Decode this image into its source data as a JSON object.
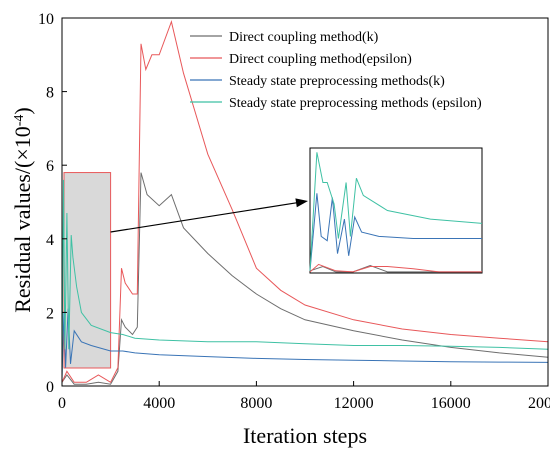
{
  "chart_data": {
    "type": "line",
    "xlabel": "Iteration steps",
    "ylabel_main": "Residual values/(×10",
    "ylabel_exp": "-4",
    "ylabel_close": ")",
    "xlim": [
      0,
      20000
    ],
    "ylim": [
      0,
      10
    ],
    "x_ticks": [
      0,
      4000,
      8000,
      12000,
      16000,
      20000
    ],
    "x_tick_labels": [
      "0",
      "4000",
      "8000",
      "12000",
      "16000",
      "20000"
    ],
    "y_ticks": [
      0,
      2,
      4,
      6,
      8,
      10
    ],
    "y_tick_labels": [
      "0",
      "2",
      "4",
      "6",
      "8",
      "10"
    ],
    "legend_position": "top-right",
    "highlight_region": {
      "x": [
        0,
        2000
      ],
      "y": [
        0,
        5.8
      ]
    },
    "series": [
      {
        "name": "Direct coupling method(k)",
        "color": "#6e6e6e",
        "points": [
          [
            0,
            0.1
          ],
          [
            200,
            0.3
          ],
          [
            500,
            0.05
          ],
          [
            1000,
            0.05
          ],
          [
            1500,
            0.1
          ],
          [
            2000,
            0.05
          ],
          [
            2300,
            0.4
          ],
          [
            2450,
            1.8
          ],
          [
            2600,
            1.6
          ],
          [
            2900,
            1.4
          ],
          [
            3100,
            1.6
          ],
          [
            3250,
            5.8
          ],
          [
            3500,
            5.2
          ],
          [
            4000,
            4.9
          ],
          [
            4500,
            5.2
          ],
          [
            5000,
            4.3
          ],
          [
            6000,
            3.6
          ],
          [
            7000,
            3.0
          ],
          [
            8000,
            2.5
          ],
          [
            9000,
            2.1
          ],
          [
            10000,
            1.8
          ],
          [
            12000,
            1.5
          ],
          [
            14000,
            1.25
          ],
          [
            16000,
            1.05
          ],
          [
            18000,
            0.9
          ],
          [
            20000,
            0.78
          ]
        ]
      },
      {
        "name": "Direct coupling method(epsilon)",
        "color": "#e8585a",
        "points": [
          [
            0,
            0.1
          ],
          [
            200,
            0.4
          ],
          [
            500,
            0.1
          ],
          [
            1000,
            0.1
          ],
          [
            1500,
            0.3
          ],
          [
            2000,
            0.1
          ],
          [
            2300,
            0.5
          ],
          [
            2450,
            3.2
          ],
          [
            2600,
            2.8
          ],
          [
            2900,
            2.5
          ],
          [
            3100,
            2.5
          ],
          [
            3250,
            9.3
          ],
          [
            3450,
            8.6
          ],
          [
            3700,
            9.0
          ],
          [
            4000,
            9.0
          ],
          [
            4500,
            9.9
          ],
          [
            5000,
            8.5
          ],
          [
            6000,
            6.3
          ],
          [
            7000,
            4.8
          ],
          [
            8000,
            3.2
          ],
          [
            9000,
            2.6
          ],
          [
            10000,
            2.2
          ],
          [
            12000,
            1.8
          ],
          [
            14000,
            1.55
          ],
          [
            16000,
            1.4
          ],
          [
            18000,
            1.3
          ],
          [
            20000,
            1.2
          ]
        ]
      },
      {
        "name": "Steady state preprocessing methods(k)",
        "color": "#3a74b6",
        "points": [
          [
            0,
            0.2
          ],
          [
            80,
            2.0
          ],
          [
            150,
            0.5
          ],
          [
            250,
            2.1
          ],
          [
            350,
            0.6
          ],
          [
            500,
            1.5
          ],
          [
            800,
            1.2
          ],
          [
            1200,
            1.1
          ],
          [
            2000,
            0.95
          ],
          [
            2500,
            0.95
          ],
          [
            3000,
            0.9
          ],
          [
            4000,
            0.85
          ],
          [
            6000,
            0.8
          ],
          [
            8000,
            0.75
          ],
          [
            10000,
            0.72
          ],
          [
            12000,
            0.7
          ],
          [
            14000,
            0.68
          ],
          [
            16000,
            0.66
          ],
          [
            18000,
            0.65
          ],
          [
            20000,
            0.64
          ]
        ]
      },
      {
        "name": "Steady state preprocessing methods (epsilon)",
        "color": "#3fc1a4",
        "points": [
          [
            0,
            0.2
          ],
          [
            60,
            5.6
          ],
          [
            120,
            1.0
          ],
          [
            200,
            4.7
          ],
          [
            280,
            1.0
          ],
          [
            380,
            4.1
          ],
          [
            450,
            3.5
          ],
          [
            600,
            2.7
          ],
          [
            800,
            2.0
          ],
          [
            1200,
            1.65
          ],
          [
            2000,
            1.45
          ],
          [
            2500,
            1.4
          ],
          [
            3000,
            1.3
          ],
          [
            4000,
            1.25
          ],
          [
            6000,
            1.2
          ],
          [
            8000,
            1.2
          ],
          [
            10000,
            1.15
          ],
          [
            12000,
            1.1
          ],
          [
            14000,
            1.1
          ],
          [
            16000,
            1.08
          ],
          [
            18000,
            1.05
          ],
          [
            20000,
            1.0
          ]
        ]
      }
    ],
    "inset": {
      "xlim": [
        0,
        2000
      ],
      "ylim": [
        0,
        5.8
      ],
      "series": [
        {
          "name": "Direct coupling method(k)",
          "color": "#6e6e6e",
          "points": [
            [
              0,
              0.1
            ],
            [
              150,
              0.3
            ],
            [
              300,
              0.05
            ],
            [
              500,
              0.05
            ],
            [
              700,
              0.35
            ],
            [
              900,
              0.05
            ],
            [
              1200,
              0.05
            ],
            [
              1500,
              0.05
            ],
            [
              2000,
              0.05
            ]
          ]
        },
        {
          "name": "Direct coupling method(epsilon)",
          "color": "#e8585a",
          "points": [
            [
              0,
              0.05
            ],
            [
              100,
              0.4
            ],
            [
              300,
              0.1
            ],
            [
              500,
              0.05
            ],
            [
              700,
              0.3
            ],
            [
              900,
              0.3
            ],
            [
              1200,
              0.2
            ],
            [
              1500,
              0.05
            ],
            [
              2000,
              0.05
            ]
          ]
        },
        {
          "name": "Steady state preprocessing methods(k)",
          "color": "#3a74b6",
          "points": [
            [
              0,
              0.1
            ],
            [
              80,
              3.7
            ],
            [
              130,
              1.7
            ],
            [
              200,
              1.5
            ],
            [
              260,
              3.5
            ],
            [
              320,
              0.9
            ],
            [
              400,
              2.5
            ],
            [
              450,
              0.8
            ],
            [
              520,
              2.6
            ],
            [
              600,
              1.9
            ],
            [
              800,
              1.7
            ],
            [
              1200,
              1.6
            ],
            [
              2000,
              1.6
            ]
          ]
        },
        {
          "name": "Steady state preprocessing methods (epsilon)",
          "color": "#3fc1a4",
          "points": [
            [
              0,
              0.1
            ],
            [
              80,
              5.6
            ],
            [
              150,
              4.2
            ],
            [
              200,
              4.2
            ],
            [
              280,
              3.2
            ],
            [
              330,
              1.6
            ],
            [
              420,
              4.2
            ],
            [
              470,
              1.7
            ],
            [
              540,
              4.4
            ],
            [
              620,
              3.6
            ],
            [
              900,
              2.9
            ],
            [
              1400,
              2.5
            ],
            [
              2000,
              2.3
            ]
          ]
        }
      ]
    }
  }
}
